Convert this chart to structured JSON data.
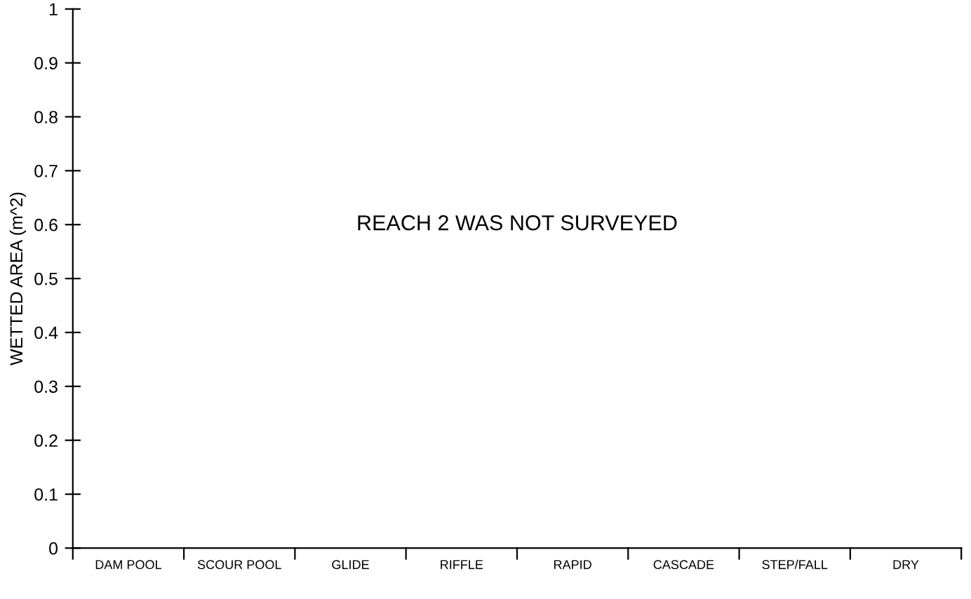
{
  "chart_data": {
    "type": "bar",
    "categories": [
      "DAM POOL",
      "SCOUR POOL",
      "GLIDE",
      "RIFFLE",
      "RAPID",
      "CASCADE",
      "STEP/FALL",
      "DRY"
    ],
    "values": [
      null,
      null,
      null,
      null,
      null,
      null,
      null,
      null
    ],
    "ylabel": "WETTED AREA (m^2)",
    "ylim": [
      0,
      1
    ],
    "yticks": [
      0,
      0.1,
      0.2,
      0.3,
      0.4,
      0.5,
      0.6,
      0.7,
      0.8,
      0.9,
      1
    ],
    "annotations": [
      "REACH 2 WAS NOT SURVEYED"
    ],
    "grid": false,
    "legend": false
  }
}
